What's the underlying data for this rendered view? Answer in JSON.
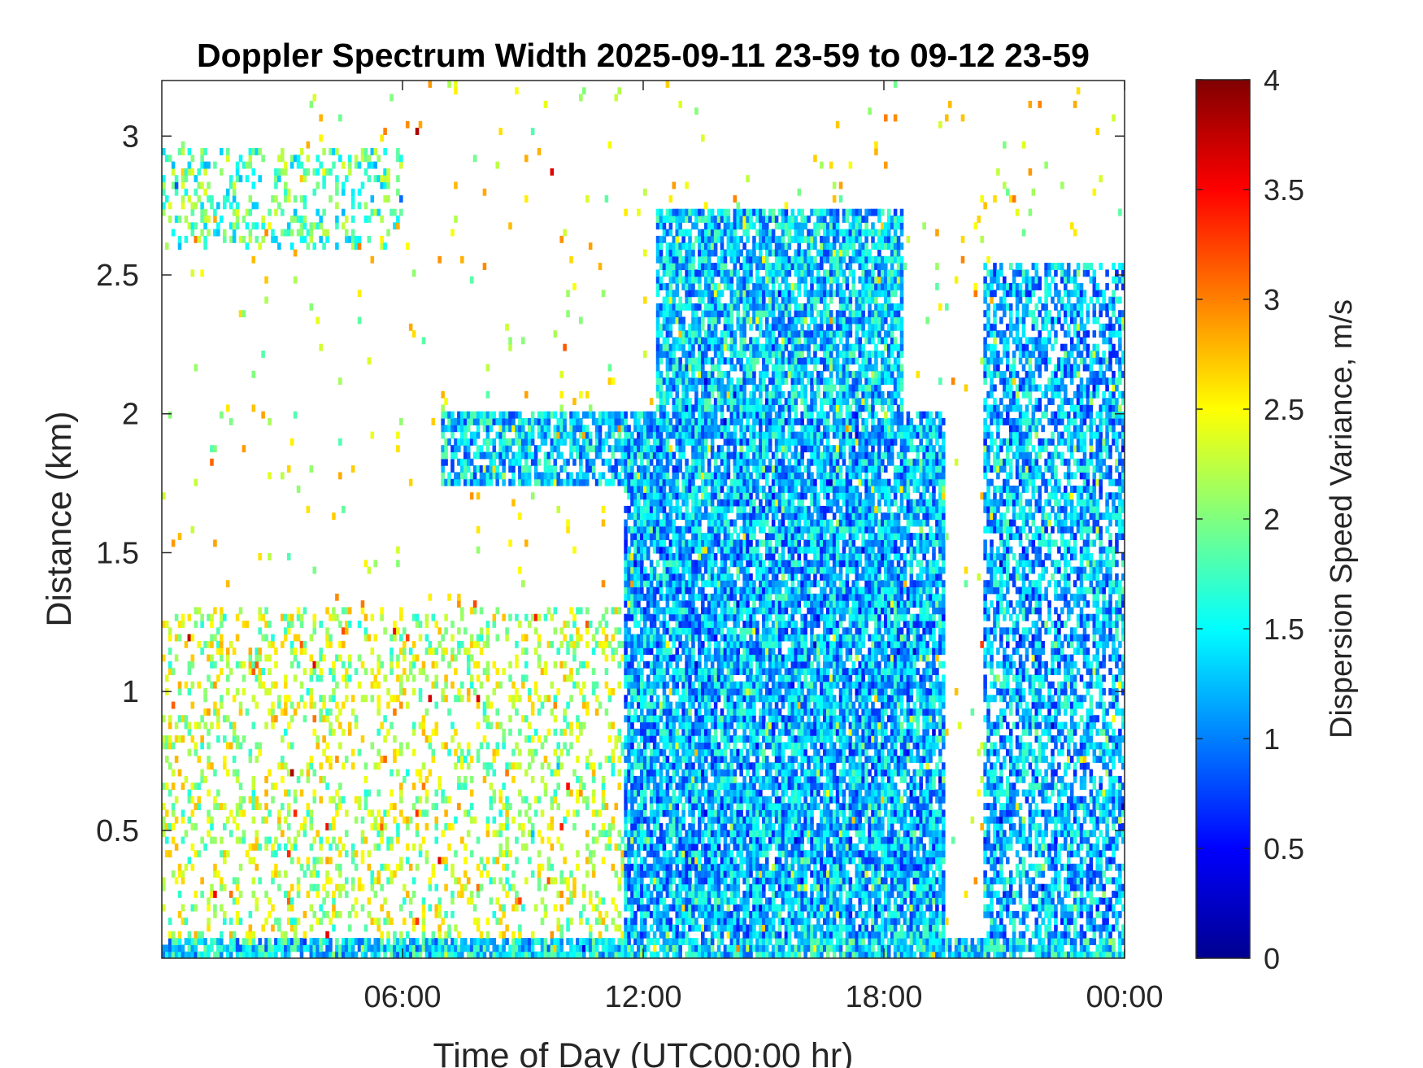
{
  "chart_data": {
    "type": "heatmap",
    "title": "Doppler Spectrum Width 2025-09-11 23-59 to 09-12 23-59",
    "xlabel": "Time of Day (UTC00:00 hr)",
    "ylabel": "Distance (km)",
    "colorbar_label": "Dispersion Speed Variance, m/s",
    "colormap": "jet",
    "xlim_hours": [
      0,
      24
    ],
    "ylim_km": [
      0.04,
      3.2
    ],
    "clim": [
      0,
      4
    ],
    "x_ticks": [
      {
        "value": 6,
        "label": "06:00"
      },
      {
        "value": 12,
        "label": "12:00"
      },
      {
        "value": 18,
        "label": "18:00"
      },
      {
        "value": 24,
        "label": "00:00"
      }
    ],
    "y_ticks": [
      {
        "value": 0.5,
        "label": "0.5"
      },
      {
        "value": 1,
        "label": "1"
      },
      {
        "value": 1.5,
        "label": "1.5"
      },
      {
        "value": 2,
        "label": "2"
      },
      {
        "value": 2.5,
        "label": "2.5"
      },
      {
        "value": 3,
        "label": "3"
      }
    ],
    "colorbar_ticks": [
      {
        "value": 0,
        "label": "0"
      },
      {
        "value": 0.5,
        "label": "0.5"
      },
      {
        "value": 1,
        "label": "1"
      },
      {
        "value": 1.5,
        "label": "1.5"
      },
      {
        "value": 2,
        "label": "2"
      },
      {
        "value": 2.5,
        "label": "2.5"
      },
      {
        "value": 3,
        "label": "3"
      },
      {
        "value": 3.5,
        "label": "3.5"
      },
      {
        "value": 4,
        "label": "4"
      }
    ],
    "features": [
      {
        "name": "surface layer",
        "x_hours": [
          0,
          24
        ],
        "y_km": [
          0.04,
          0.12
        ],
        "value_ms": 1.4,
        "coverage": 0.85
      },
      {
        "name": "morning low-level scatter",
        "x_hours": [
          0,
          11.5
        ],
        "y_km": [
          0.04,
          1.3
        ],
        "value_ms": 2.2,
        "coverage": 0.25
      },
      {
        "name": "early cloud patch",
        "x_hours": [
          0,
          6
        ],
        "y_km": [
          2.6,
          2.95
        ],
        "value_ms": 1.8,
        "coverage": 0.3
      },
      {
        "name": "elevated layer",
        "x_hours": [
          7,
          12
        ],
        "y_km": [
          1.75,
          2.0
        ],
        "value_ms": 1.3,
        "coverage": 0.75
      },
      {
        "name": "afternoon convective boundary layer",
        "x_hours": [
          11.5,
          19.5
        ],
        "y_km": [
          0.04,
          2.0
        ],
        "value_ms": 1.2,
        "coverage": 0.85
      },
      {
        "name": "afternoon upper cloud",
        "x_hours": [
          12.3,
          18.5
        ],
        "y_km": [
          1.8,
          2.75
        ],
        "value_ms": 1.3,
        "coverage": 0.8
      },
      {
        "name": "late night layer",
        "x_hours": [
          20.5,
          24
        ],
        "y_km": [
          0.04,
          2.55
        ],
        "value_ms": 1.2,
        "coverage": 0.65
      }
    ]
  }
}
